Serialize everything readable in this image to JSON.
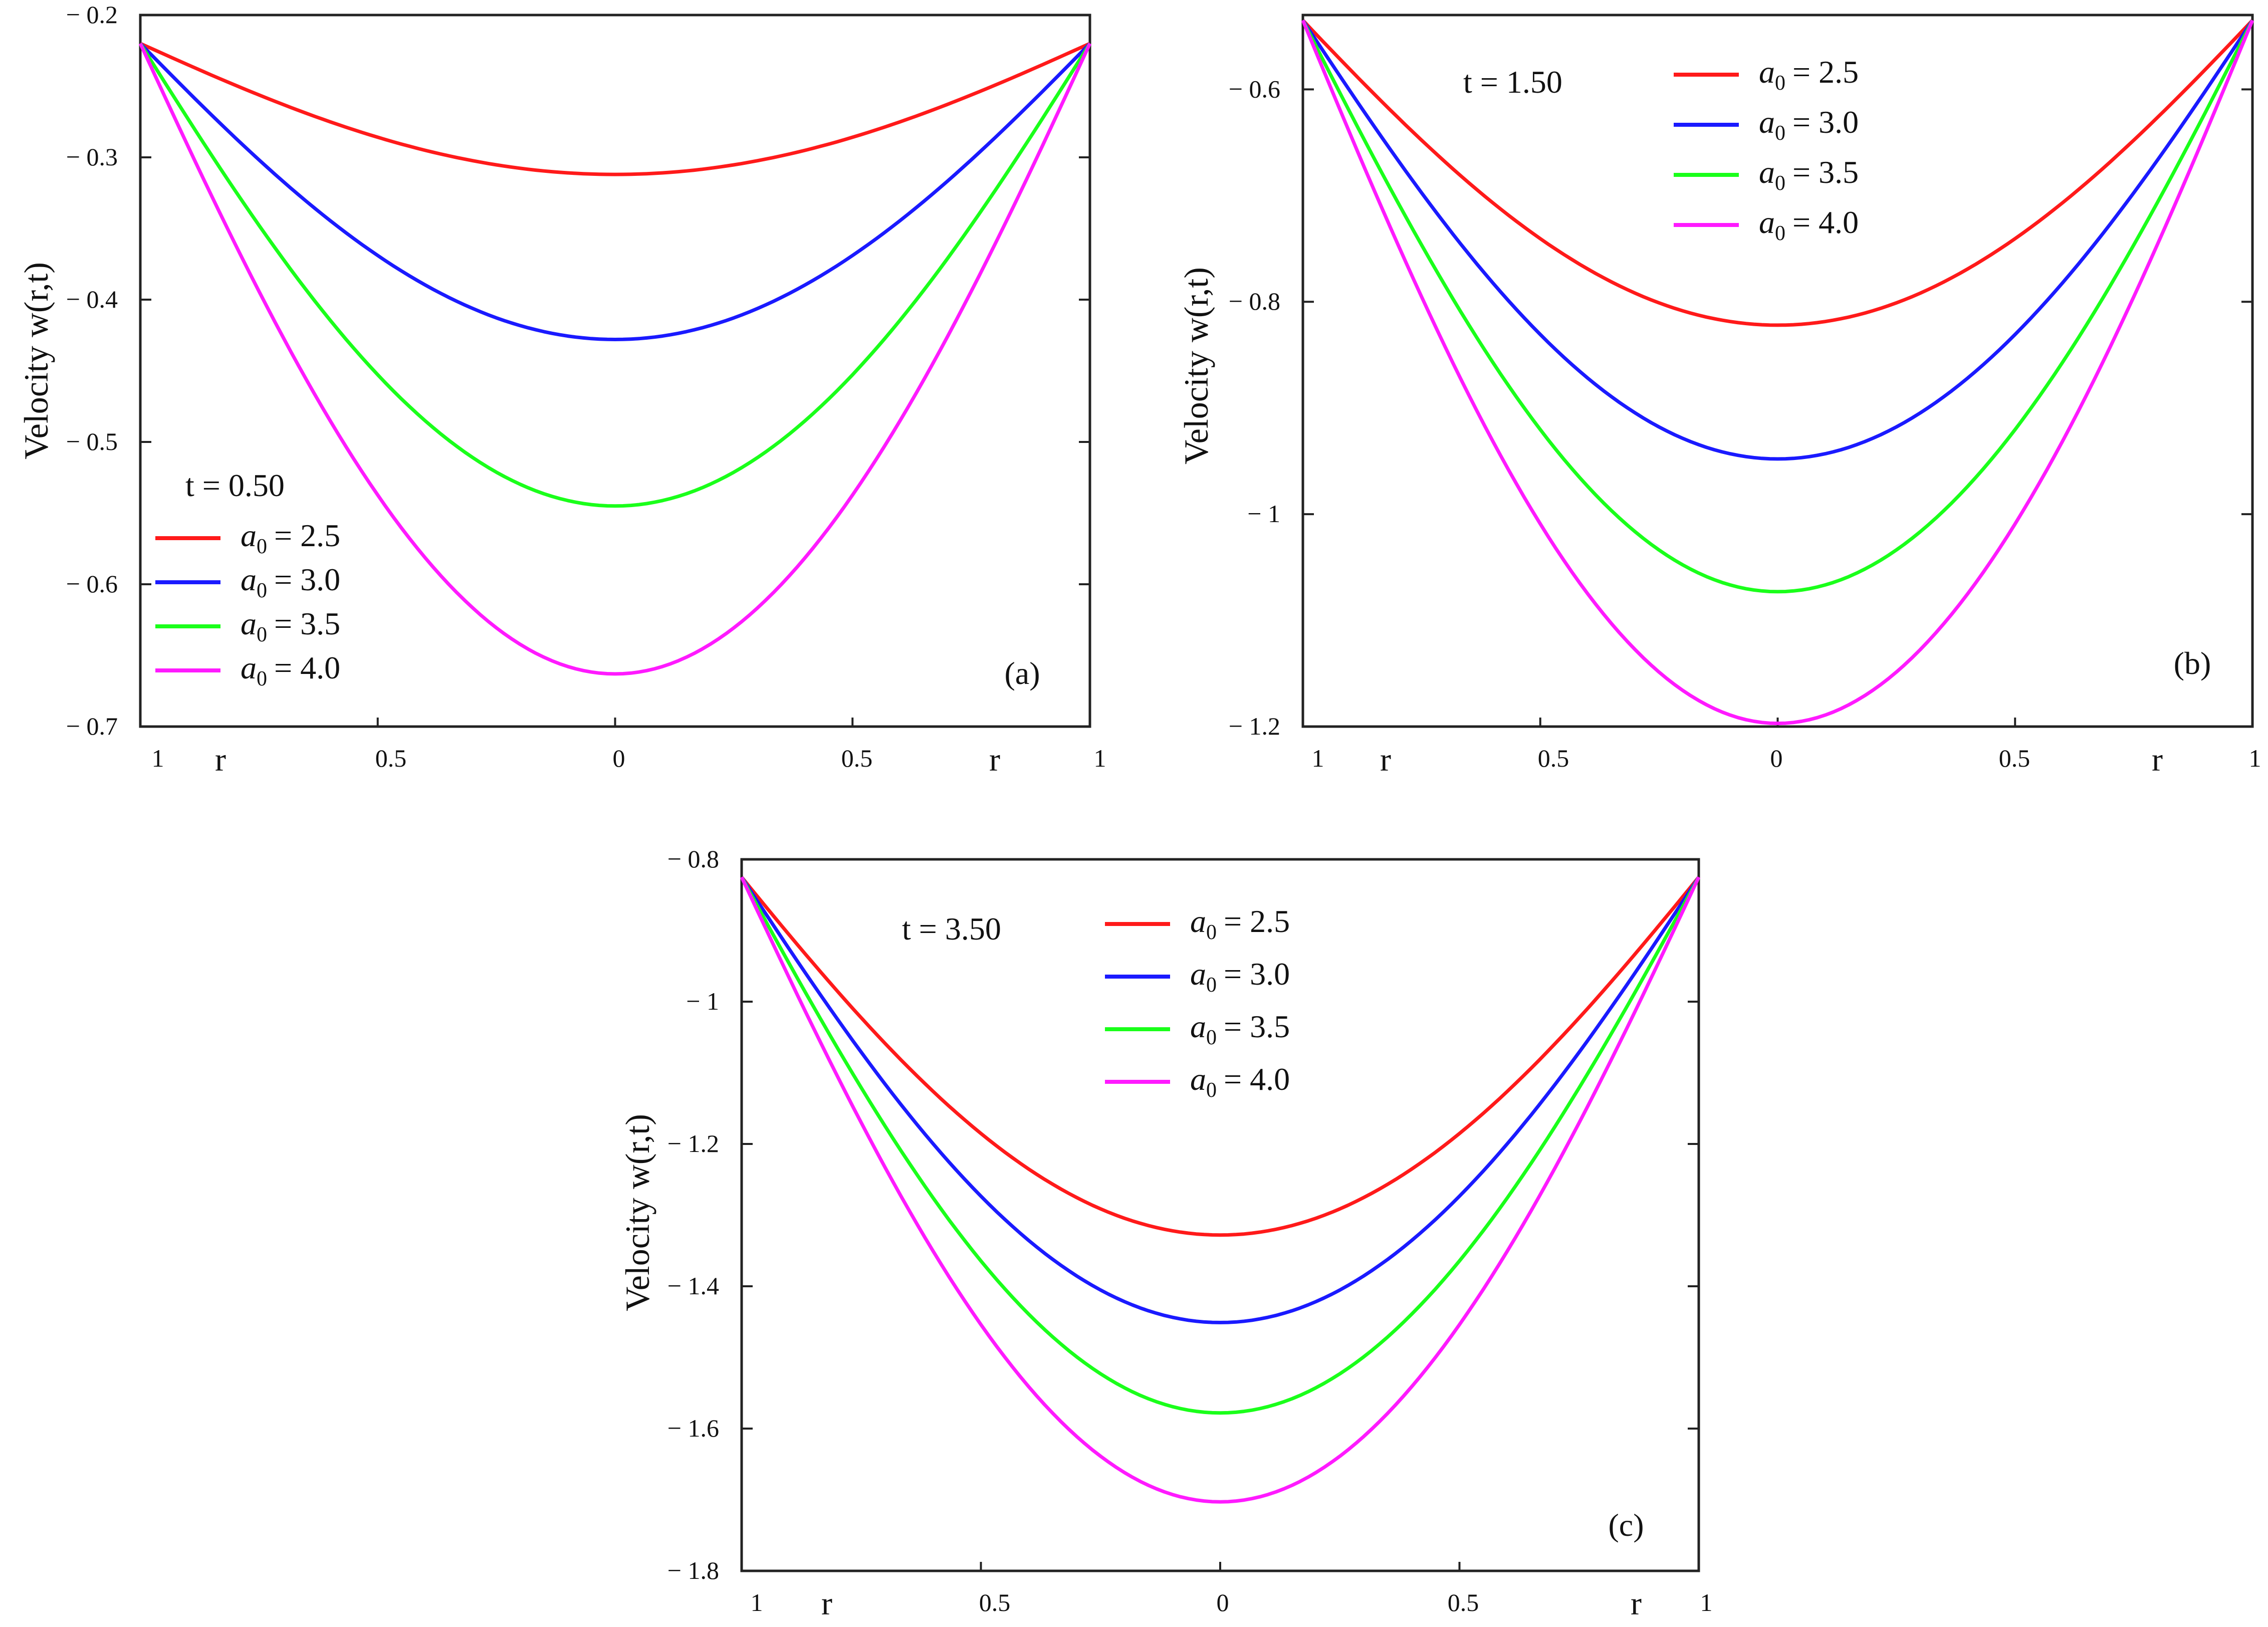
{
  "chart_data": [
    {
      "type": "line",
      "panel_label": "(a)",
      "time_label": "t = 0.50",
      "ylabel": "Velocity w(r,t)",
      "xlabel": "r",
      "x_tick_labels": [
        "1",
        "0.5",
        "0",
        "0.5",
        "1"
      ],
      "ylim": [
        -0.7,
        -0.2
      ],
      "y_ticks": [
        -0.2,
        -0.3,
        -0.4,
        -0.5,
        -0.6,
        -0.7
      ],
      "y_tick_labels": [
        "− 0.2",
        "− 0.3",
        "− 0.4",
        "− 0.5",
        "− 0.6",
        "− 0.7"
      ],
      "x": [
        -1,
        -0.5,
        0,
        0.5,
        1
      ],
      "legend_position": "bottom-left",
      "series": [
        {
          "name": "2.5",
          "color": "#ff1a1a",
          "edge_value": -0.22,
          "min_value": -0.312,
          "values": [
            -0.22,
            -0.289,
            -0.312,
            -0.289,
            -0.22
          ]
        },
        {
          "name": "3.0",
          "color": "#1a1aff",
          "edge_value": -0.22,
          "min_value": -0.428,
          "values": [
            -0.22,
            -0.376,
            -0.428,
            -0.376,
            -0.22
          ]
        },
        {
          "name": "3.5",
          "color": "#1aff1a",
          "edge_value": -0.22,
          "min_value": -0.545,
          "values": [
            -0.22,
            -0.464,
            -0.545,
            -0.464,
            -0.22
          ]
        },
        {
          "name": "4.0",
          "color": "#ff1aff",
          "edge_value": -0.22,
          "min_value": -0.663,
          "values": [
            -0.22,
            -0.552,
            -0.663,
            -0.552,
            -0.22
          ]
        }
      ]
    },
    {
      "type": "line",
      "panel_label": "(b)",
      "time_label": "t = 1.50",
      "ylabel": "Velocity w(r,t)",
      "xlabel": "r",
      "x_tick_labels": [
        "1",
        "0.5",
        "0",
        "0.5",
        "1"
      ],
      "ylim": [
        -1.2,
        -0.53
      ],
      "y_ticks": [
        -0.6,
        -0.8,
        -1.0,
        -1.2
      ],
      "y_tick_labels": [
        "− 0.6",
        "− 0.8",
        "− 1",
        "− 1.2"
      ],
      "x": [
        -1,
        -0.5,
        0,
        0.5,
        1
      ],
      "legend_position": "top",
      "series": [
        {
          "name": "2.5",
          "color": "#ff1a1a",
          "edge_value": -0.535,
          "min_value": -0.822,
          "values": [
            -0.535,
            -0.75,
            -0.822,
            -0.75,
            -0.535
          ]
        },
        {
          "name": "3.0",
          "color": "#1a1aff",
          "edge_value": -0.535,
          "min_value": -0.948,
          "values": [
            -0.535,
            -0.845,
            -0.948,
            -0.845,
            -0.535
          ]
        },
        {
          "name": "3.5",
          "color": "#1aff1a",
          "edge_value": -0.535,
          "min_value": -1.073,
          "values": [
            -0.535,
            -0.939,
            -1.073,
            -0.939,
            -0.535
          ]
        },
        {
          "name": "4.0",
          "color": "#ff1aff",
          "edge_value": -0.535,
          "min_value": -1.197,
          "values": [
            -0.535,
            -1.031,
            -1.197,
            -1.031,
            -0.535
          ]
        }
      ]
    },
    {
      "type": "line",
      "panel_label": "(c)",
      "time_label": "t = 3.50",
      "ylabel": "Velocity w(r,t)",
      "xlabel": "r",
      "x_tick_labels": [
        "1",
        "0.5",
        "0",
        "0.5",
        "1"
      ],
      "ylim": [
        -1.8,
        -0.8
      ],
      "y_ticks": [
        -0.8,
        -1.0,
        -1.2,
        -1.4,
        -1.6,
        -1.8
      ],
      "y_tick_labels": [
        "− 0.8",
        "− 1",
        "− 1.2",
        "− 1.4",
        "− 1.6",
        "− 1.8"
      ],
      "x": [
        -1,
        -0.5,
        0,
        0.5,
        1
      ],
      "legend_position": "top",
      "series": [
        {
          "name": "2.5",
          "color": "#ff1a1a",
          "edge_value": -0.825,
          "min_value": -1.328,
          "values": [
            -0.825,
            -1.202,
            -1.328,
            -1.202,
            -0.825
          ]
        },
        {
          "name": "3.0",
          "color": "#1a1aff",
          "edge_value": -0.825,
          "min_value": -1.451,
          "values": [
            -0.825,
            -1.295,
            -1.451,
            -1.295,
            -0.825
          ]
        },
        {
          "name": "3.5",
          "color": "#1aff1a",
          "edge_value": -0.825,
          "min_value": -1.578,
          "values": [
            -0.825,
            -1.39,
            -1.578,
            -1.39,
            -0.825
          ]
        },
        {
          "name": "4.0",
          "color": "#ff1aff",
          "edge_value": -0.825,
          "min_value": -1.703,
          "values": [
            -0.825,
            -1.484,
            -1.703,
            -1.484,
            -0.825
          ]
        }
      ]
    }
  ],
  "legend_prefix": "a",
  "legend_subscript": "0",
  "legend_equals": "= "
}
